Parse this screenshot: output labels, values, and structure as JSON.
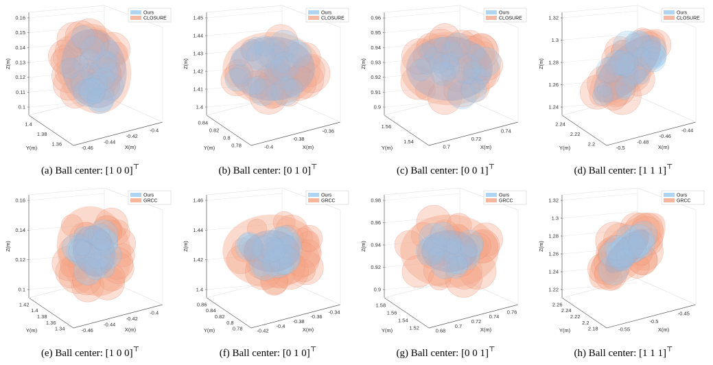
{
  "panels": [
    {
      "id": "a",
      "caption": "(a) Ball center: ",
      "vector": "[1 0 0]",
      "sup": "⊤",
      "legend": [
        "Ours",
        "CLOSURE"
      ],
      "zlabel": "Z(m)",
      "xlabel": "X(m)",
      "ylabel": "Y(m)",
      "zticks": [
        "0.16",
        "0.15",
        "0.14",
        "0.13",
        "0.12",
        "0.11",
        "0.1"
      ],
      "xticks": [
        "-0.46",
        "-0.44",
        "-0.42",
        "-0.4"
      ],
      "yticks": [
        "1.4",
        "1.38",
        "1.36"
      ],
      "shape": "upright",
      "other": "closure"
    },
    {
      "id": "b",
      "caption": "(b) Ball center: ",
      "vector": "[0 1 0]",
      "sup": "⊤",
      "legend": [
        "Ours",
        "CLOSURE"
      ],
      "zlabel": "Z(m)",
      "xlabel": "X(m)",
      "ylabel": "Y(m)",
      "zticks": [
        "1.45",
        "1.44",
        "1.43",
        "1.42",
        "1.41",
        "1.4"
      ],
      "xticks": [
        "-0.4",
        "-0.38",
        "-0.36"
      ],
      "yticks": [
        "0.84",
        "0.82",
        "0.8",
        "0.78"
      ],
      "shape": "wide",
      "other": "closure"
    },
    {
      "id": "c",
      "caption": "(c) Ball center: ",
      "vector": "[0 0 1]",
      "sup": "⊤",
      "legend": [
        "Ours",
        "CLOSURE"
      ],
      "zlabel": "Z(m)",
      "xlabel": "X(m)",
      "ylabel": "Y(m)",
      "zticks": [
        "0.96",
        "0.95",
        "0.94",
        "0.93",
        "0.92",
        "0.91",
        "0.9"
      ],
      "xticks": [
        "0.7",
        "0.72",
        "0.74"
      ],
      "yticks": [
        "1.56",
        "1.54"
      ],
      "shape": "wide",
      "other": "closure"
    },
    {
      "id": "d",
      "caption": "(d) Ball center: ",
      "vector": "[1 1 1]",
      "sup": "⊤",
      "legend": [
        "Ours",
        "CLOSURE"
      ],
      "zlabel": "Z(m)",
      "xlabel": "X(m)",
      "ylabel": "Y(m)",
      "zticks": [
        "1.32",
        "1.3",
        "1.28",
        "1.26",
        "1.24"
      ],
      "xticks": [
        "-0.5",
        "-0.48",
        "-0.46",
        "-0.44"
      ],
      "yticks": [
        "2.24",
        "2.22",
        "2.2"
      ],
      "shape": "diag",
      "other": "closure"
    },
    {
      "id": "e",
      "caption": "(e) Ball center: ",
      "vector": "[1 0 0]",
      "sup": "⊤",
      "legend": [
        "Ours",
        "GRCC"
      ],
      "zlabel": "Z(m)",
      "xlabel": "X(m)",
      "ylabel": "Y(m)",
      "zticks": [
        "0.16",
        "0.14",
        "0.12",
        "0.1"
      ],
      "xticks": [
        "-0.46",
        "-0.44",
        "-0.42",
        "-0.4"
      ],
      "yticks": [
        "1.42",
        "1.4",
        "1.38",
        "1.36",
        "1.34"
      ],
      "shape": "upright",
      "other": "grcc"
    },
    {
      "id": "f",
      "caption": "(f) Ball center: ",
      "vector": "[0 1 0]",
      "sup": "⊤",
      "legend": [
        "Ours",
        "GRCC"
      ],
      "zlabel": "Z(m)",
      "xlabel": "X(m)",
      "ylabel": "Y(m)",
      "zticks": [
        "1.46",
        "1.44",
        "1.42",
        "1.4"
      ],
      "xticks": [
        "-0.42",
        "-0.4",
        "-0.38",
        "-0.36",
        "-0.34"
      ],
      "yticks": [
        "0.86",
        "0.84",
        "0.82",
        "0.8",
        "0.78"
      ],
      "shape": "wide",
      "other": "grcc"
    },
    {
      "id": "g",
      "caption": "(g) Ball center: ",
      "vector": "[0 0 1]",
      "sup": "⊤",
      "legend": [
        "Ours",
        "GRCC"
      ],
      "zlabel": "Z(m)",
      "xlabel": "X(m)",
      "ylabel": "Y(m)",
      "zticks": [
        "0.98",
        "0.96",
        "0.94",
        "0.92",
        "0.9"
      ],
      "xticks": [
        "0.68",
        "0.7",
        "0.72",
        "0.74",
        "0.76"
      ],
      "yticks": [
        "1.58",
        "1.56",
        "1.54",
        "1.52"
      ],
      "shape": "wide",
      "other": "grcc"
    },
    {
      "id": "h",
      "caption": "(h) Ball center: ",
      "vector": "[1 1 1]",
      "sup": "⊤",
      "legend": [
        "Ours",
        "GRCC"
      ],
      "zlabel": "Z(m)",
      "xlabel": "X(m)",
      "ylabel": "Y(m)",
      "zticks": [
        "1.32",
        "1.3",
        "1.28",
        "1.26",
        "1.24",
        "1.22"
      ],
      "xticks": [
        "-0.55",
        "-0.5",
        "-0.45"
      ],
      "yticks": [
        "2.26",
        "2.24",
        "2.22",
        "2.2",
        "2.18"
      ],
      "shape": "diag",
      "other": "grcc"
    }
  ],
  "colors": {
    "ours": "#9ccaf0",
    "closure": "#f3a98e",
    "grcc": "#f4a384",
    "axis": "#555555",
    "grid": "#e6e6e6"
  }
}
